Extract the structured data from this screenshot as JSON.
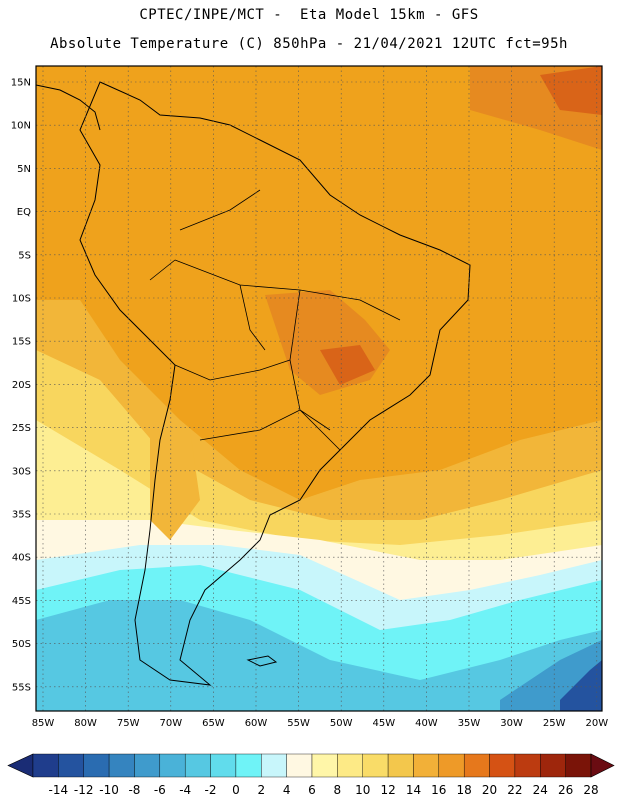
{
  "header": {
    "line1": "CPTEC/INPE/MCT -  Eta Model 15km - GFS",
    "line2": "Absolute Temperature (C) 850hPa - 21/04/2021 12UTC fct=95h"
  },
  "map": {
    "lat_labels": [
      "15N",
      "10N",
      "5N",
      "EQ",
      "5S",
      "10S",
      "15S",
      "20S",
      "25S",
      "30S",
      "35S",
      "40S",
      "45S",
      "50S",
      "55S"
    ],
    "lon_labels": [
      "85W",
      "80W",
      "75W",
      "70W",
      "65W",
      "60W",
      "55W",
      "50W",
      "45W",
      "40W",
      "35W",
      "30W",
      "25W",
      "20W"
    ]
  },
  "colorbar": {
    "labels": [
      "-14",
      "-12",
      "-10",
      "-8",
      "-6",
      "-4",
      "-2",
      "0",
      "2",
      "4",
      "6",
      "8",
      "10",
      "12",
      "14",
      "16",
      "18",
      "20",
      "22",
      "24",
      "26",
      "28"
    ],
    "colors": [
      "#1f3d8c",
      "#24539f",
      "#2a6cb1",
      "#3584bf",
      "#3f9bcc",
      "#4ab2d8",
      "#56c8e2",
      "#61dcec",
      "#6ff3f7",
      "#c8f6fb",
      "#fff8e2",
      "#fff6a8",
      "#fdea86",
      "#f9dc68",
      "#f3c74c",
      "#f2b038",
      "#ee9a28",
      "#e6781c",
      "#d55214",
      "#bc3b10",
      "#9e260c",
      "#7a1408"
    ],
    "under_color": "#1a2c75",
    "over_color": "#6a0c12"
  }
}
